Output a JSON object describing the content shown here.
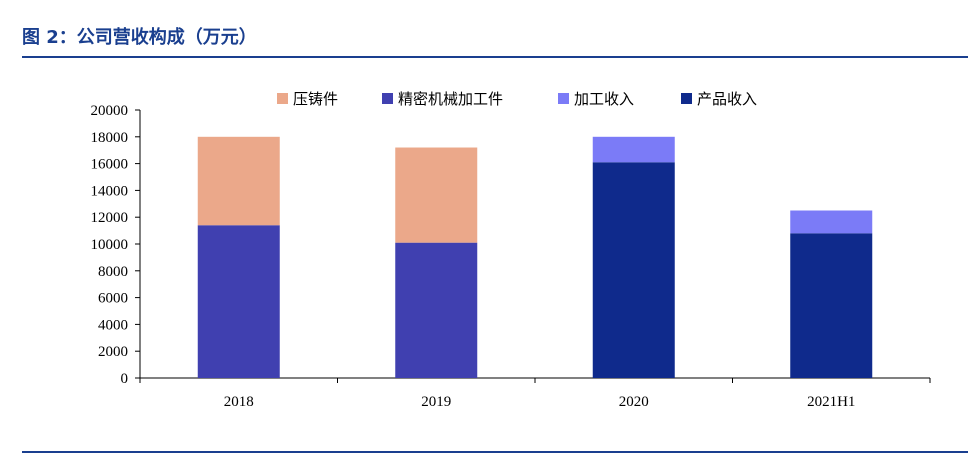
{
  "figure": {
    "title": "图 2：公司营收构成（万元）",
    "accent_color": "#1a3f8f"
  },
  "chart_data": {
    "type": "bar",
    "stacked": true,
    "categories": [
      "2018",
      "2019",
      "2020",
      "2021H1"
    ],
    "series": [
      {
        "name": "压铸件",
        "color": "#eba88a",
        "values": [
          6600,
          7100,
          0,
          0
        ]
      },
      {
        "name": "精密机械加工件",
        "color": "#4040b0",
        "values": [
          11400,
          10100,
          0,
          0
        ]
      },
      {
        "name": "加工收入",
        "color": "#7b7bf7",
        "values": [
          0,
          0,
          1900,
          1700
        ]
      },
      {
        "name": "产品收入",
        "color": "#0f2a8c",
        "values": [
          0,
          0,
          16100,
          10800
        ]
      }
    ],
    "stack_order": [
      "产品收入",
      "加工收入",
      "精密机械加工件",
      "压铸件"
    ],
    "ylim": [
      0,
      20000
    ],
    "yticks": [
      0,
      2000,
      4000,
      6000,
      8000,
      10000,
      12000,
      14000,
      16000,
      18000,
      20000
    ],
    "legend_position": "top",
    "grid": false
  }
}
